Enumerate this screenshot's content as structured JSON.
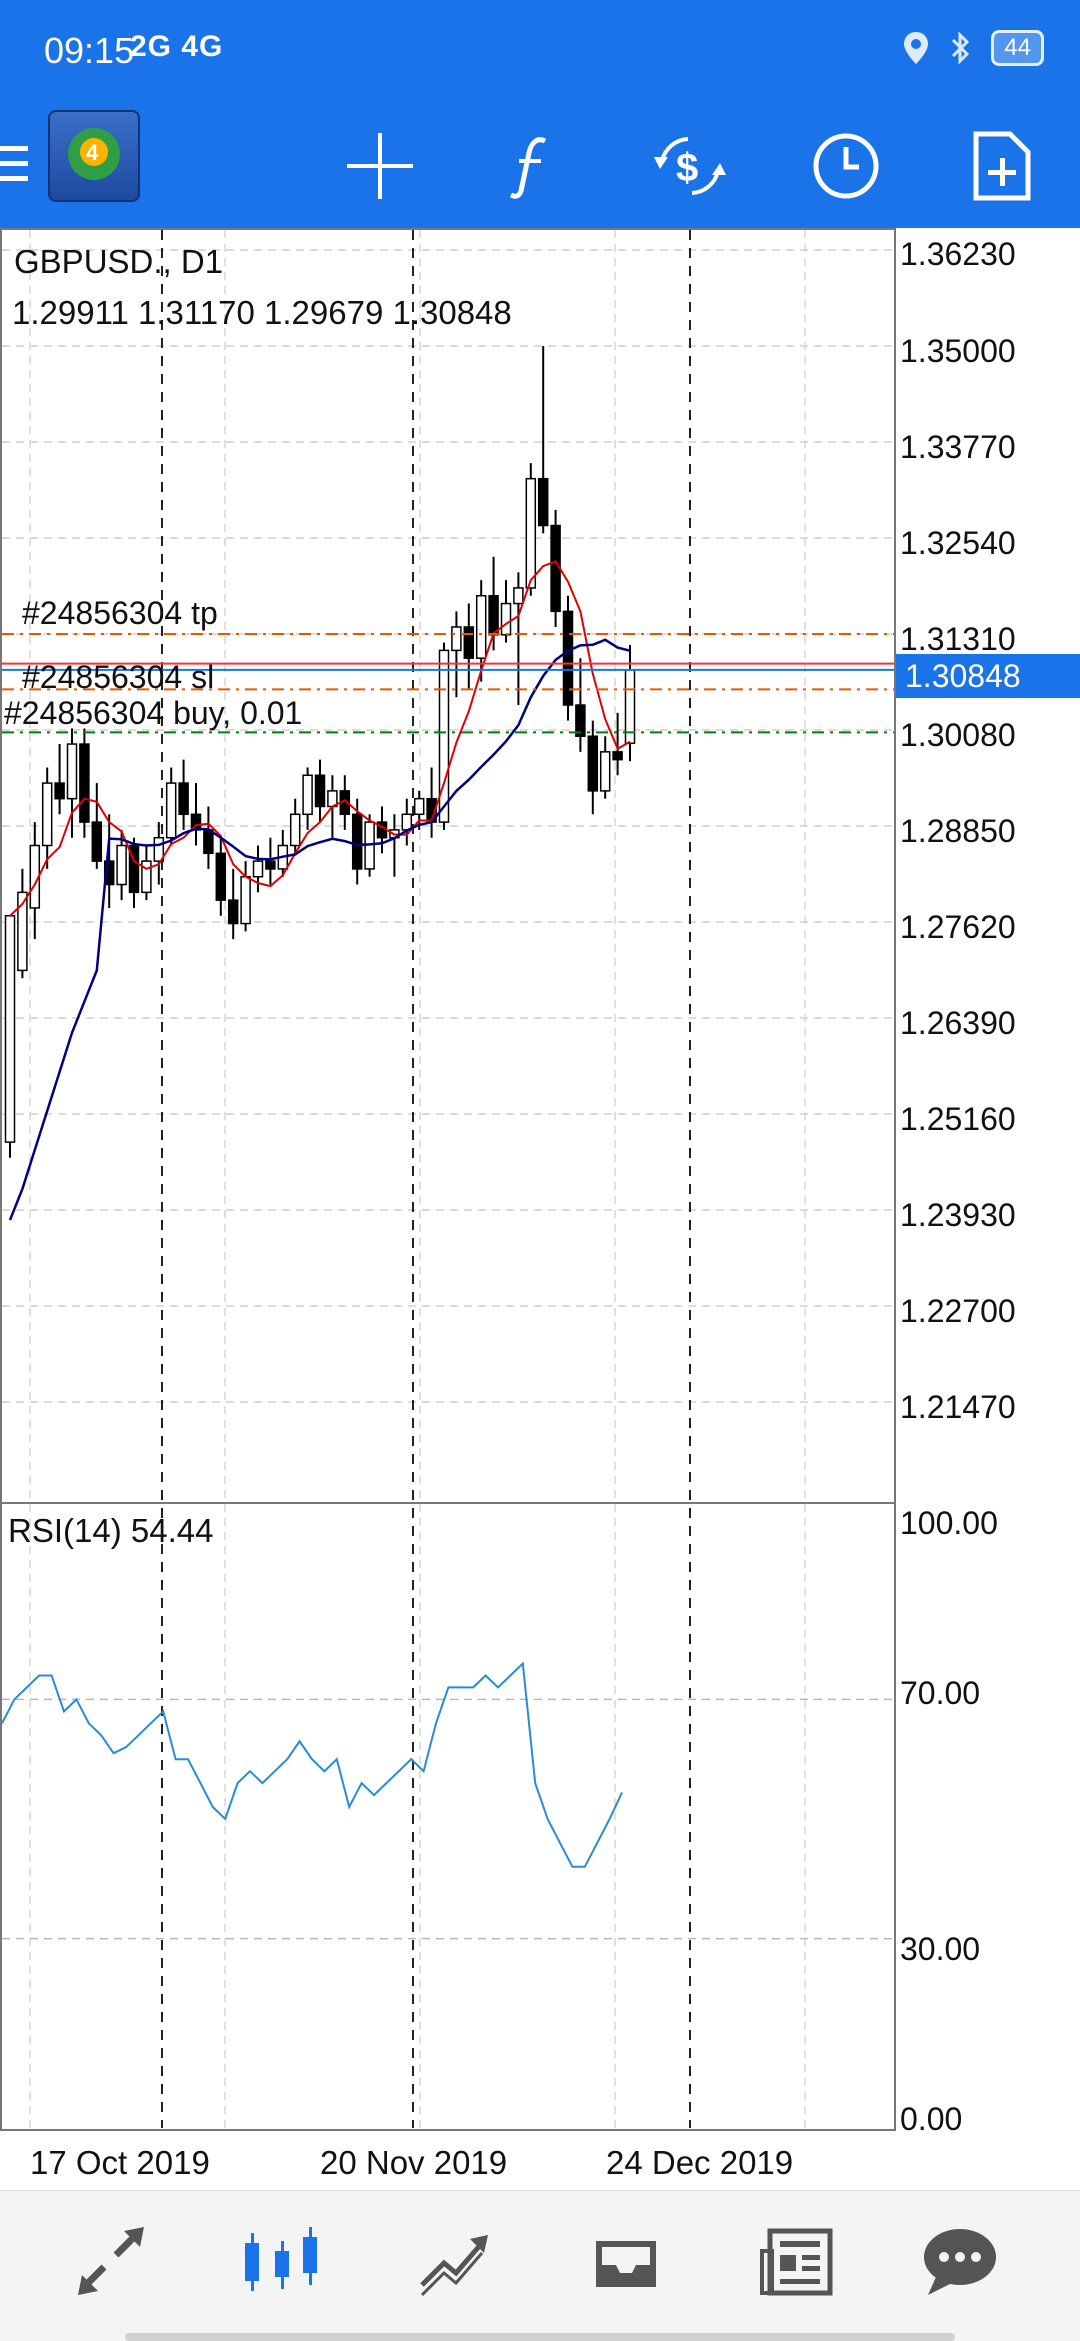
{
  "status_bar": {
    "time": "09:15",
    "network": "2G 4G",
    "battery": "44"
  },
  "toolbar": {
    "menu_icon": "menu-icon",
    "logo": "mt4-logo",
    "buttons": [
      "crosshair-icon",
      "function-icon",
      "trade-icon",
      "clock-icon",
      "new-document-icon"
    ]
  },
  "chart": {
    "symbol": "GBPUSD., D1",
    "ohlc": "1.29911 1.31170 1.29679 1.30848",
    "current_price": "1.30848",
    "price_axis": [
      "1.36230",
      "1.35000",
      "1.33770",
      "1.32540",
      "1.31310",
      "1.30080",
      "1.28850",
      "1.27620",
      "1.26390",
      "1.25160",
      "1.23930",
      "1.22700",
      "1.21470"
    ],
    "order_lines": {
      "tp": "#24856304 tp",
      "sl": "#24856304 sl",
      "buy": "#24856304 buy, 0.01"
    },
    "date_labels": [
      "17 Oct 2019",
      "20 Nov 2019",
      "24 Dec 2019"
    ],
    "colors": {
      "ma_fast": "#e00000",
      "ma_slow": "#000080",
      "rsi_line": "#2b8ad8",
      "tp_line": "#e05a00",
      "sl_line": "#e05a00",
      "buy_line": "#008000",
      "current_price_bg": "#1a73e8",
      "bid_line": "#ff3030",
      "ask_line": "#1a73e8"
    }
  },
  "rsi": {
    "label": "RSI(14) 54.44",
    "axis": [
      "100.00",
      "70.00",
      "30.00",
      "0.00"
    ]
  },
  "bottom_nav": [
    "quotes-icon",
    "chart-icon",
    "trade-icon",
    "history-icon",
    "news-icon",
    "chat-icon"
  ],
  "chart_data": {
    "type": "table",
    "title": "GBPUSD., D1",
    "ohlc": {
      "open": 1.29911,
      "high": 1.3117,
      "low": 1.29679,
      "close": 1.30848
    },
    "ylim": [
      1.21,
      1.365
    ],
    "price_levels": [
      1.3623,
      1.35,
      1.3377,
      1.3254,
      1.3131,
      1.3008,
      1.2885,
      1.2762,
      1.2639,
      1.2516,
      1.2393,
      1.227,
      1.2147
    ],
    "rsi_levels": [
      100,
      70,
      30,
      0
    ],
    "rsi_value": 54.44
  }
}
